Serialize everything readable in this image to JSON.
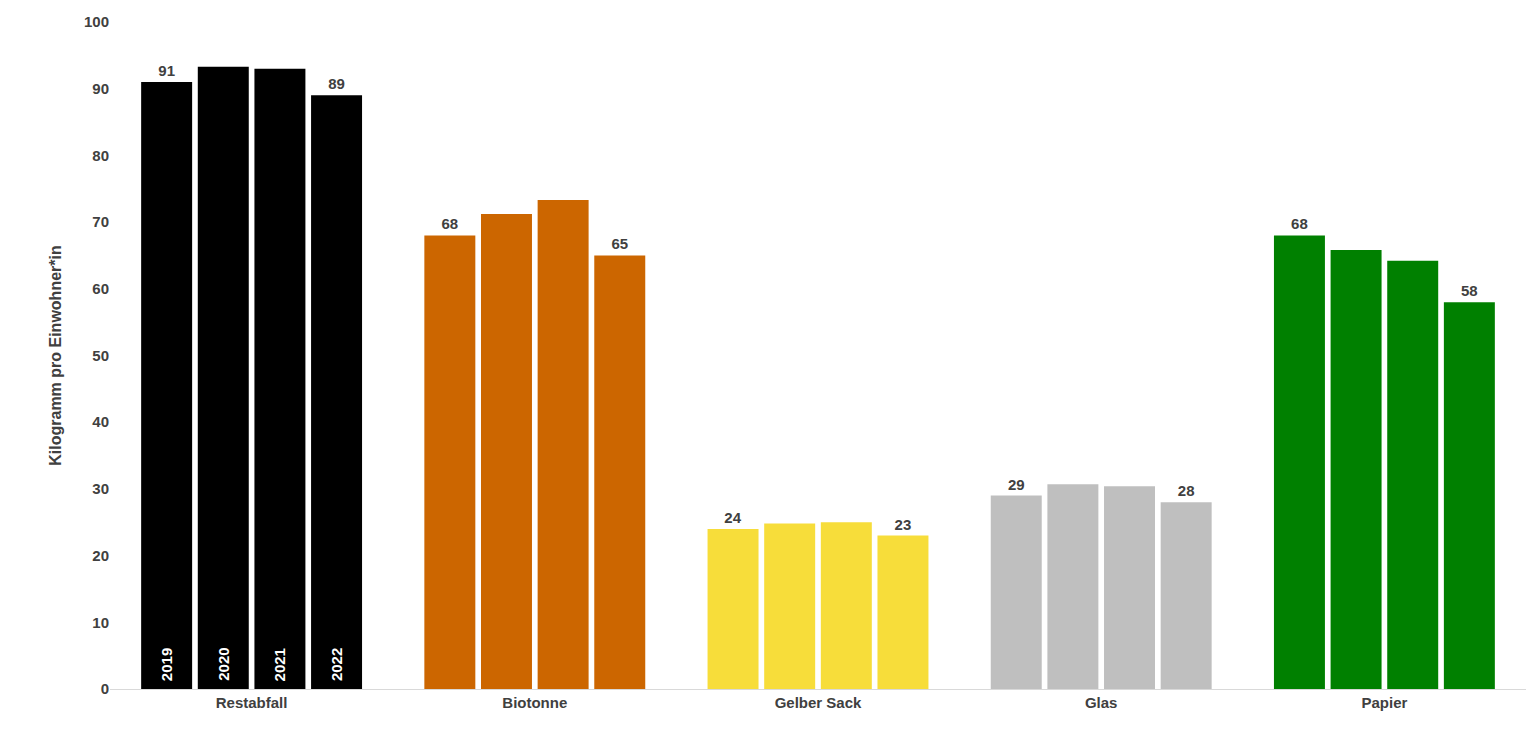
{
  "chart_data": {
    "type": "bar",
    "y_label": "Kilogramm pro Einwohner*in",
    "categories": [
      "Restabfall",
      "Biotonne",
      "Gelber Sack",
      "Glas",
      "Papier"
    ],
    "colors": [
      "#000000",
      "#cc6600",
      "#f7dd3a",
      "#bfbfbf",
      "#008000"
    ],
    "series": [
      {
        "name": "2019",
        "values": [
          91,
          68,
          24,
          29,
          68
        ],
        "value_labels": [
          "91",
          "68",
          "24",
          "29",
          "68"
        ]
      },
      {
        "name": "2020",
        "values": [
          93.3,
          71.2,
          24.8,
          30.7,
          65.8
        ],
        "value_labels": [
          null,
          null,
          null,
          null,
          null
        ]
      },
      {
        "name": "2021",
        "values": [
          93,
          73.3,
          25,
          30.4,
          64.2
        ],
        "value_labels": [
          null,
          null,
          null,
          null,
          null
        ]
      },
      {
        "name": "2022",
        "values": [
          89,
          65,
          23,
          28,
          58
        ],
        "value_labels": [
          "89",
          "65",
          "23",
          "28",
          "58"
        ]
      }
    ],
    "ylim": [
      0,
      100
    ],
    "yticks": [
      0,
      10,
      20,
      30,
      40,
      50,
      60,
      70,
      80,
      90,
      100
    ],
    "grid": false,
    "data_labels": true
  }
}
